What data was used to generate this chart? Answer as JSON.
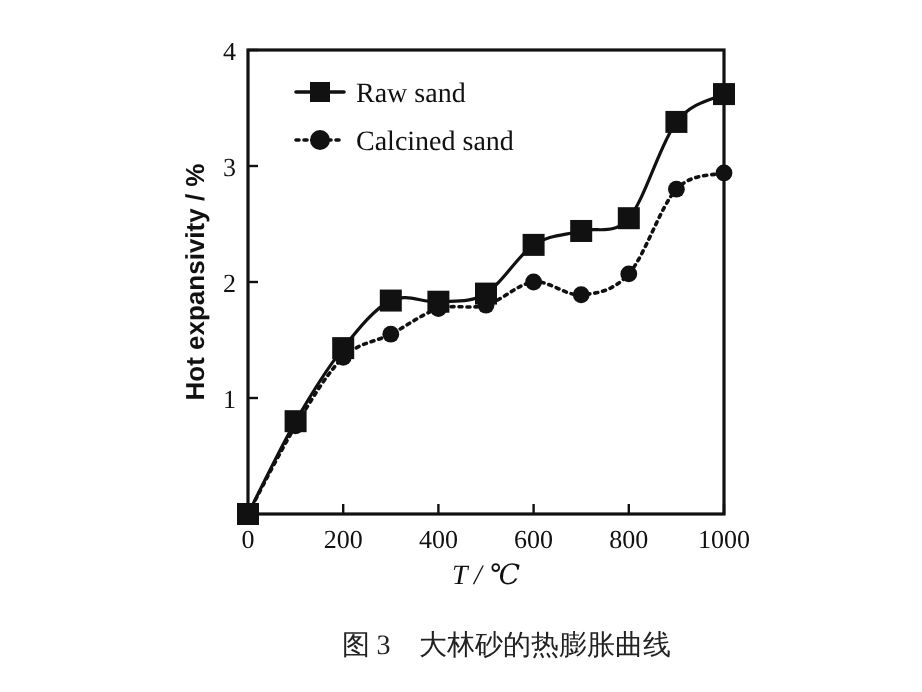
{
  "chart_data": {
    "type": "line",
    "title": "图 3　大林砂的热膨胀曲线",
    "xlabel": "T / ℃",
    "ylabel": "Hot expansivity / %",
    "x": [
      0,
      100,
      200,
      300,
      400,
      500,
      600,
      700,
      800,
      900,
      1000
    ],
    "series": [
      {
        "name": "Raw sand",
        "color": "#111111",
        "marker": "square",
        "line_style": "solid",
        "values": [
          0,
          0.8,
          1.43,
          1.84,
          1.83,
          1.9,
          2.32,
          2.44,
          2.55,
          3.38,
          3.62
        ]
      },
      {
        "name": "Calcined sand",
        "color": "#111111",
        "marker": "circle",
        "line_style": "dotted",
        "values": [
          0,
          0.76,
          1.35,
          1.55,
          1.77,
          1.8,
          2.0,
          1.89,
          2.07,
          2.8,
          2.94
        ]
      }
    ],
    "xlim": [
      0,
      1000
    ],
    "ylim": [
      0,
      4
    ],
    "xticks": [
      0,
      200,
      400,
      600,
      800,
      1000
    ],
    "yticks": [
      {
        "value": 0,
        "label": null
      },
      1,
      2,
      3,
      4
    ],
    "legend": "top left",
    "grid": false
  }
}
